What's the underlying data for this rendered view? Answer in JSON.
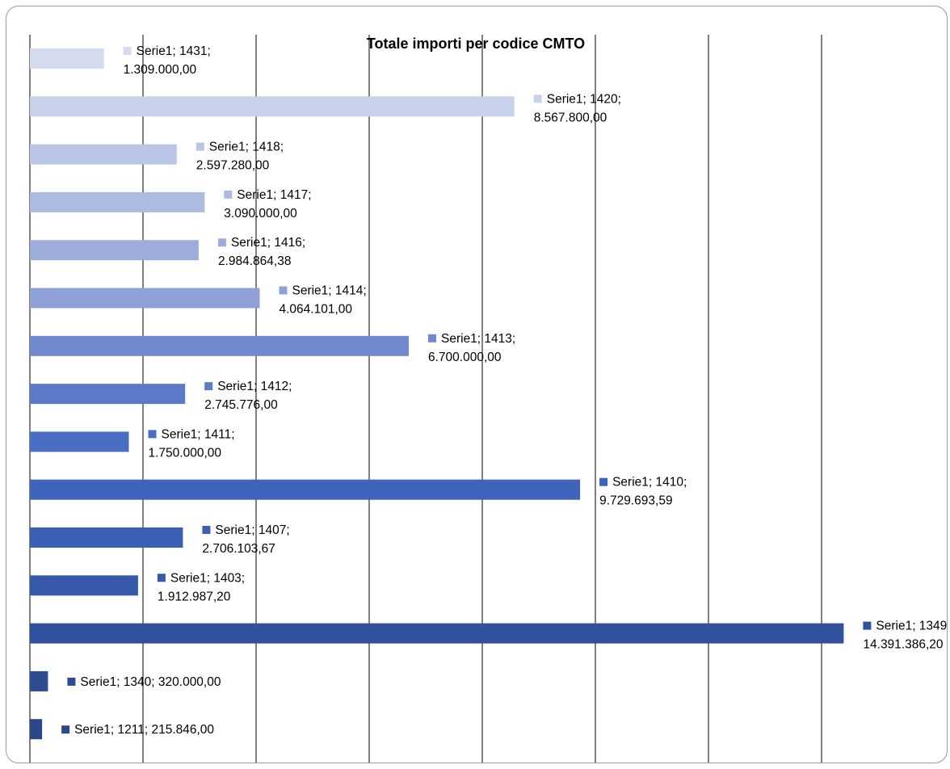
{
  "chart_data": {
    "type": "bar",
    "orientation": "horizontal",
    "title": "Totale importi per codice CMTO",
    "series_name": "Serie1",
    "xlim": [
      0,
      15000000
    ],
    "grid": "vertical",
    "legend": "none",
    "bars": [
      {
        "category": "1431",
        "value": 1309000.0,
        "label_line1": "Serie1; 1431;",
        "label_line2": "1.309.000,00",
        "color": "#d4dbee"
      },
      {
        "category": "1420",
        "value": 8567800.0,
        "label_line1": "Serie1; 1420;",
        "label_line2": "8.567.800,00",
        "color": "#c8d1ea"
      },
      {
        "category": "1418",
        "value": 2597280.0,
        "label_line1": "Serie1; 1418;",
        "label_line2": "2.597.280,00",
        "color": "#bbc6e6"
      },
      {
        "category": "1417",
        "value": 3090000.0,
        "label_line1": "Serie1; 1417;",
        "label_line2": "3.090.000,00",
        "color": "#aebbe1"
      },
      {
        "category": "1416",
        "value": 2984864.38,
        "label_line1": "Serie1; 1416;",
        "label_line2": "2.984.864,38",
        "color": "#9eaddb"
      },
      {
        "category": "1414",
        "value": 4064101.0,
        "label_line1": "Serie1; 1414;",
        "label_line2": "4.064.101,00",
        "color": "#8ea0d5"
      },
      {
        "category": "1413",
        "value": 6700000.0,
        "label_line1": "Serie1; 1413;",
        "label_line2": "6.700.000,00",
        "color": "#7189ce"
      },
      {
        "category": "1412",
        "value": 2745776.0,
        "label_line1": "Serie1; 1412;",
        "label_line2": "2.745.776,00",
        "color": "#5b7ac8"
      },
      {
        "category": "1411",
        "value": 1750000.0,
        "label_line1": "Serie1; 1411;",
        "label_line2": "1.750.000,00",
        "color": "#4a6ec4"
      },
      {
        "category": "1410",
        "value": 9729693.59,
        "label_line1": "Serie1; 1410;",
        "label_line2": "9.729.693,59",
        "color": "#3e64bc"
      },
      {
        "category": "1407",
        "value": 2706103.67,
        "label_line1": "Serie1; 1407;",
        "label_line2": "2.706.103,67",
        "color": "#3a5fb3"
      },
      {
        "category": "1403",
        "value": 1912987.2,
        "label_line1": "Serie1; 1403;",
        "label_line2": "1.912.987,20",
        "color": "#3659a9"
      },
      {
        "category": "1349",
        "value": 14391386.2,
        "label_line1": "Serie1; 1349;",
        "label_line2": "14.391.386,20",
        "color": "#30529c"
      },
      {
        "category": "1340",
        "value": 320000.0,
        "label_line1": "Serie1; 1340; 320.000,00",
        "label_line2": "",
        "color": "#2d4c91"
      },
      {
        "category": "1211",
        "value": 215846.0,
        "label_line1": "Serie1; 1211; 215.846,00",
        "label_line2": "",
        "color": "#2a4786"
      }
    ]
  }
}
